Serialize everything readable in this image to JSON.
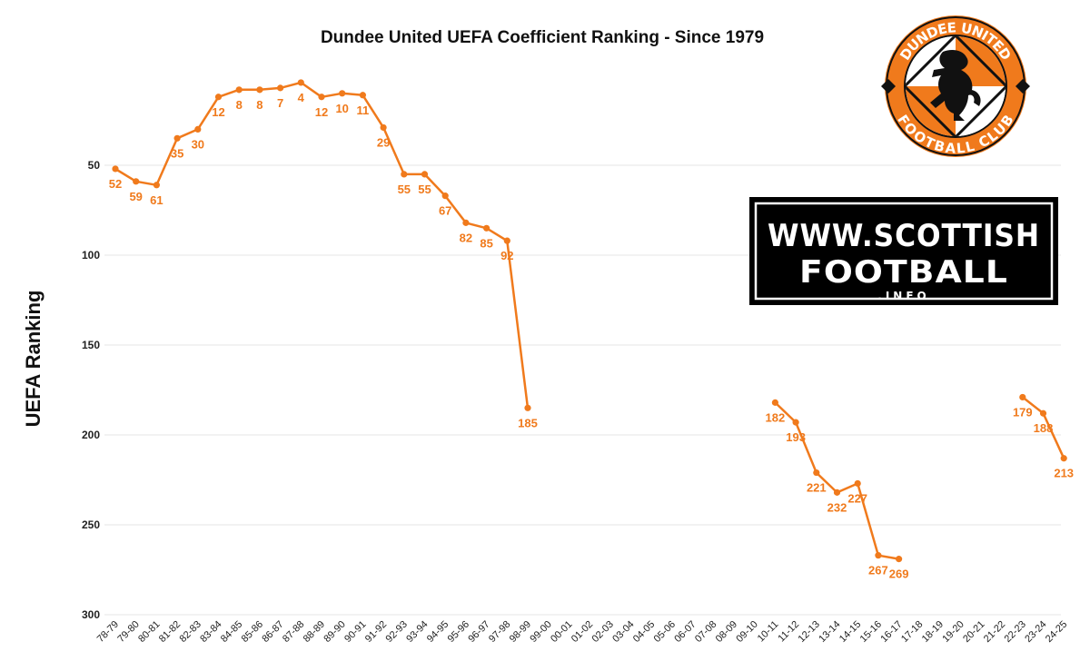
{
  "chart_data": {
    "type": "line",
    "title": "Dundee United UEFA Coefficient Ranking - Since 1979",
    "xlabel": "",
    "ylabel": "UEFA Ranking",
    "ylim": [
      300,
      0
    ],
    "y_inverted": true,
    "yticks": [
      50,
      100,
      150,
      200,
      250,
      300
    ],
    "grid": true,
    "legend": "none",
    "series_color": "#f07a1c",
    "categories": [
      "78-79",
      "79-80",
      "80-81",
      "81-82",
      "82-83",
      "83-84",
      "84-85",
      "85-86",
      "86-87",
      "87-88",
      "88-89",
      "89-90",
      "90-91",
      "91-92",
      "92-93",
      "93-94",
      "94-95",
      "95-96",
      "96-97",
      "97-98",
      "98-99",
      "99-00",
      "00-01",
      "01-02",
      "02-03",
      "03-04",
      "04-05",
      "05-06",
      "06-07",
      "07-08",
      "08-09",
      "09-10",
      "10-11",
      "11-12",
      "12-13",
      "13-14",
      "14-15",
      "15-16",
      "16-17",
      "17-18",
      "18-19",
      "19-20",
      "20-21",
      "21-22",
      "22-23",
      "23-24",
      "24-25"
    ],
    "series": [
      {
        "values": [
          52,
          59,
          61,
          35,
          30,
          12,
          8,
          8,
          7,
          4,
          12,
          10,
          11,
          29,
          55,
          55,
          67,
          82,
          85,
          92,
          185,
          null,
          null,
          null,
          null,
          null,
          null,
          null,
          null,
          null,
          null,
          null,
          182,
          193,
          221,
          232,
          227,
          267,
          269,
          null,
          null,
          null,
          null,
          null,
          179,
          188,
          213
        ]
      }
    ]
  },
  "logos": {
    "crest": {
      "top_text": "DUNDEE UNITED",
      "bottom_text": "FOOTBALL CLUB",
      "primary_color": "#f07a1c",
      "secondary_color": "#000000"
    },
    "brand": {
      "line1": "WWW.SCOTTISH",
      "line2": "FOOTBALL",
      "line3": ".INFO"
    }
  }
}
